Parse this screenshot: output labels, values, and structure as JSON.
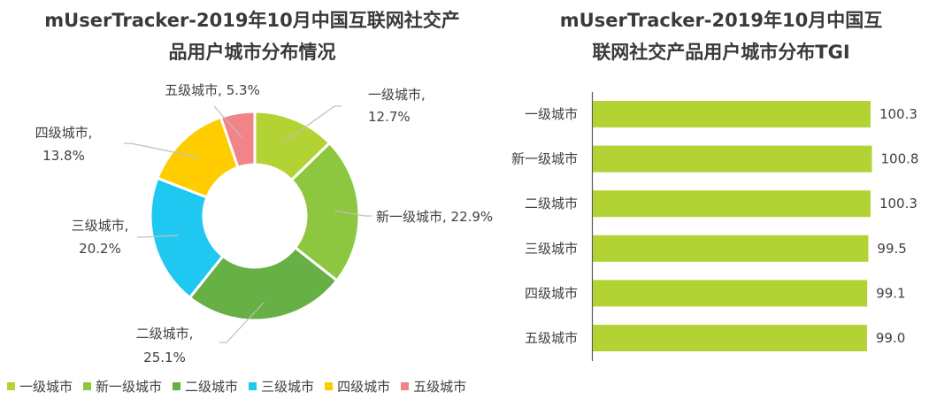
{
  "pie_chart": {
    "title_line1": "mUserTracker-2019年10月中国互联网社交产",
    "title_line2": "品用户城市分布情况"
  },
  "bar_chart": {
    "title_line1": "mUserTracker-2019年10月中国互",
    "title_line2": "联网社交产品用户城市分布TGI"
  },
  "legend": [
    {
      "label": "一级城市",
      "color": "#b3d335"
    },
    {
      "label": "新一级城市",
      "color": "#8dc63f"
    },
    {
      "label": "二级城市",
      "color": "#66b045"
    },
    {
      "label": "三级城市",
      "color": "#1fc8f0"
    },
    {
      "label": "四级城市",
      "color": "#ffcc00"
    },
    {
      "label": "五级城市",
      "color": "#f08488"
    }
  ],
  "chart_data": [
    {
      "type": "pie",
      "variant": "donut",
      "title": "mUserTracker-2019年10月中国互联网社交产品用户城市分布情况",
      "categories": [
        "一级城市",
        "新一级城市",
        "二级城市",
        "三级城市",
        "四级城市",
        "五级城市"
      ],
      "values": [
        12.7,
        22.9,
        25.1,
        20.2,
        13.8,
        5.3
      ],
      "unit": "%",
      "colors": [
        "#b3d335",
        "#8dc63f",
        "#66b045",
        "#1fc8f0",
        "#ffcc00",
        "#f08488"
      ],
      "data_labels": [
        "一级城市, 12.7%",
        "新一级城市, 22.9%",
        "二级城市, 25.1%",
        "三级城市, 20.2%",
        "四级城市, 13.8%",
        "五级城市, 5.3%"
      ],
      "legend_position": "bottom"
    },
    {
      "type": "bar",
      "orientation": "horizontal",
      "title": "mUserTracker-2019年10月中国互联网社交产品用户城市分布TGI",
      "categories": [
        "一级城市",
        "新一级城市",
        "二级城市",
        "三级城市",
        "四级城市",
        "五级城市"
      ],
      "values": [
        100.3,
        100.8,
        100.3,
        99.5,
        99.1,
        99.0
      ],
      "value_labels": [
        "100.3",
        "100.8",
        "100.3",
        "99.5",
        "99.1",
        "99.0"
      ],
      "color": "#b3d335",
      "xlabel": "",
      "ylabel": "",
      "grid": false
    }
  ]
}
